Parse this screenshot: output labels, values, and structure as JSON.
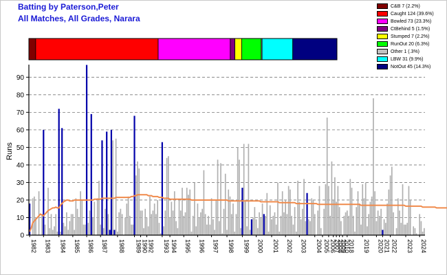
{
  "header": {
    "title": "Batting by Paterson,Peter",
    "subtitle": "All Matches, All Grades, Narara"
  },
  "legend": [
    {
      "label": "C&B 7 (2.2%)",
      "color": "#800000"
    },
    {
      "label": "Caught 124 (39.6%)",
      "color": "#ff0000"
    },
    {
      "label": "Bowled 73 (23.3%)",
      "color": "#ff00ff"
    },
    {
      "label": "CtBehind 5 (1.5%)",
      "color": "#800080"
    },
    {
      "label": "Stumped 7 (2.2%)",
      "color": "#ffff00"
    },
    {
      "label": "RunOut 20 (6.3%)",
      "color": "#00ff00"
    },
    {
      "label": "Other 1 (.3%)",
      "color": "#c0c0c0"
    },
    {
      "label": "LBW 31 (9.9%)",
      "color": "#00ffff"
    },
    {
      "label": "NotOut 45 (14.3%)",
      "color": "#000080"
    }
  ],
  "chart_data": [
    {
      "type": "bar",
      "stacked_percent": true,
      "segments": [
        {
          "label": "C&B",
          "value": 2.2,
          "color": "#800000"
        },
        {
          "label": "Caught",
          "value": 39.6,
          "color": "#ff0000"
        },
        {
          "label": "Bowled",
          "value": 23.3,
          "color": "#ff00ff"
        },
        {
          "label": "CtBehind",
          "value": 1.5,
          "color": "#800080"
        },
        {
          "label": "Stumped",
          "value": 2.2,
          "color": "#ffff00"
        },
        {
          "label": "RunOut",
          "value": 6.3,
          "color": "#00ff00"
        },
        {
          "label": "Other",
          "value": 0.3,
          "color": "#c0c0c0"
        },
        {
          "label": "LBW",
          "value": 9.9,
          "color": "#00ffff"
        },
        {
          "label": "NotOut",
          "value": 14.3,
          "color": "#000080"
        }
      ]
    },
    {
      "type": "bar",
      "ylabel": "Runs",
      "ylim": [
        0,
        96
      ],
      "yticks": [
        0,
        10,
        20,
        30,
        40,
        50,
        60,
        70,
        80,
        90
      ],
      "grid": true,
      "xtick_labels": [
        {
          "label": "1982",
          "index": 0
        },
        {
          "label": "1983",
          "index": 9
        },
        {
          "label": "1984",
          "index": 19
        },
        {
          "label": "1985",
          "index": 28
        },
        {
          "label": "1986",
          "index": 37
        },
        {
          "label": "1987",
          "index": 46
        },
        {
          "label": "1988",
          "index": 57
        },
        {
          "label": "1989",
          "index": 68
        },
        {
          "label": "1990",
          "index": 72
        },
        {
          "label": "1992",
          "index": 76
        },
        {
          "label": "1993",
          "index": 86
        },
        {
          "label": "1994",
          "index": 91
        },
        {
          "label": "1995",
          "index": 100
        },
        {
          "label": "1996",
          "index": 109
        },
        {
          "label": "1997",
          "index": 118
        },
        {
          "label": "1998",
          "index": 128
        },
        {
          "label": "1999",
          "index": 138
        },
        {
          "label": "2000",
          "index": 147
        },
        {
          "label": "2001",
          "index": 157
        },
        {
          "label": "2002",
          "index": 166
        },
        {
          "label": "2003",
          "index": 175
        },
        {
          "label": "2004",
          "index": 185
        },
        {
          "label": "2005",
          "index": 190
        },
        {
          "label": "2006",
          "index": 194
        },
        {
          "label": "2007",
          "index": 197
        },
        {
          "label": "2008",
          "index": 199
        },
        {
          "label": "2009",
          "index": 201
        },
        {
          "label": "2010",
          "index": 203
        },
        {
          "label": "2018",
          "index": 206
        },
        {
          "label": "2019",
          "index": 216
        },
        {
          "label": "2020",
          "index": 225
        },
        {
          "label": "2021",
          "index": 229
        },
        {
          "label": "2022",
          "index": 234
        },
        {
          "label": "2023",
          "index": 244
        },
        {
          "label": "2024",
          "index": 253
        }
      ],
      "series": [
        {
          "values": [
            18,
            0,
            21,
            22,
            10,
            0,
            25,
            0,
            12,
            60,
            6,
            0,
            27,
            4,
            12,
            3,
            5,
            12,
            2,
            72,
            2,
            61,
            7,
            5,
            13,
            3,
            8,
            12,
            12,
            3,
            21,
            15,
            10,
            25,
            20,
            6,
            6,
            97,
            7,
            14,
            69,
            10,
            19,
            0,
            21,
            31,
            6,
            54,
            4,
            15,
            59,
            12,
            3,
            60,
            54,
            3,
            55,
            2,
            13,
            15,
            12,
            0,
            10,
            18,
            22,
            11,
            6,
            6,
            68,
            34,
            42,
            38,
            14,
            14,
            4,
            15,
            10,
            5,
            22,
            12,
            14,
            18,
            12,
            20,
            7,
            1,
            53,
            5,
            14,
            44,
            45,
            10,
            19,
            14,
            25,
            8,
            4,
            20,
            14,
            27,
            11,
            13,
            27,
            23,
            26,
            2,
            11,
            30,
            5,
            18,
            10,
            13,
            15,
            37,
            12,
            6,
            11,
            6,
            21,
            9,
            3,
            20,
            43,
            8,
            41,
            1,
            15,
            35,
            3,
            26,
            22,
            12,
            18,
            2,
            12,
            50,
            43,
            4,
            27,
            52,
            20,
            5,
            52,
            3,
            9,
            10,
            16,
            9,
            4,
            13,
            10,
            18,
            12,
            11,
            24,
            2,
            17,
            9,
            11,
            13,
            6,
            30,
            2,
            11,
            25,
            13,
            20,
            12,
            28,
            26,
            11,
            6,
            16,
            2,
            31,
            19,
            9,
            15,
            32,
            8,
            24,
            9,
            8,
            21,
            20,
            12,
            0,
            14,
            28,
            4,
            0,
            15,
            29,
            67,
            28,
            11,
            42,
            20,
            33,
            19,
            28,
            16,
            8,
            0,
            11,
            13,
            14,
            11,
            32,
            27,
            11,
            2,
            16,
            25,
            18,
            6,
            29,
            21,
            30,
            5,
            12,
            19,
            22,
            78,
            25,
            8,
            14,
            11,
            15,
            3,
            9,
            7,
            18,
            26,
            34,
            39,
            13,
            0,
            4,
            21,
            14,
            7,
            29,
            6,
            6,
            7,
            28,
            20,
            0,
            5,
            4,
            1,
            0,
            12,
            8,
            2,
            4
          ],
          "not_out": [
            0,
            9,
            19,
            21,
            37,
            40,
            47,
            50,
            52,
            53,
            55,
            68,
            86,
            138,
            144,
            152,
            180,
            229
          ],
          "color": "#b0b0b0",
          "not_out_color": "#0000aa"
        },
        {
          "type": "line",
          "values": [
            2,
            4,
            7,
            8,
            9,
            10,
            11,
            12,
            11.5,
            11,
            12,
            13,
            14,
            14.5,
            15,
            15.5,
            15.5,
            16,
            15.5,
            15.5,
            17,
            18,
            19,
            19.5,
            20,
            20,
            19.5,
            19.5,
            19.5,
            20,
            20,
            20,
            20,
            20,
            20,
            20,
            20,
            20,
            20,
            20,
            20,
            20,
            20.5,
            20.5,
            20.5,
            20.5,
            20.5,
            21,
            21,
            21,
            21,
            21,
            21,
            21,
            21,
            21,
            21.5,
            21.5,
            21.5,
            21.5,
            21.5,
            21.5,
            21.5,
            21.5,
            21.5,
            21.5,
            22,
            22,
            22.5,
            22.5,
            23,
            23,
            23,
            23,
            23,
            23,
            23,
            22.5,
            22.5,
            22.5,
            22,
            22,
            22,
            22,
            21.5,
            21.5,
            21.5,
            21,
            21,
            21,
            21,
            20.5,
            20.5,
            20.5,
            20.5,
            20.5,
            20.5,
            20.5,
            20.5,
            20.5,
            20.5,
            20.5,
            20.5,
            20.5,
            20.5,
            20,
            20,
            20,
            20,
            20,
            20,
            20,
            20,
            20,
            20,
            20,
            20,
            20,
            20,
            20,
            20,
            20,
            20,
            20,
            20,
            20,
            20,
            20,
            20,
            19.5,
            19.5,
            19.5,
            19.5,
            19.5,
            19.5,
            19.5,
            19.5,
            19.5,
            19.5,
            19.5,
            19.5,
            19.5,
            19.5,
            19.5,
            19.5,
            19.5,
            19.5,
            19.5,
            19.5,
            19.5,
            19,
            19,
            19,
            19,
            19,
            19,
            19,
            19,
            19,
            19,
            19,
            19,
            18.5,
            18.5,
            18.5,
            18.5,
            18.5,
            18.5,
            18.5,
            18.5,
            18.5,
            18.5,
            18.5,
            18,
            18,
            18,
            18,
            18,
            18,
            18,
            18,
            18,
            18,
            18,
            18,
            18,
            18,
            17.5,
            17.5,
            17.5,
            17.5,
            17.5,
            17.5,
            17.5,
            17.5,
            17.5,
            17.5,
            17.5,
            17.5,
            17.5,
            17.5,
            17.5,
            17.5,
            17.5,
            17.5,
            17.5,
            17.5,
            17.5,
            17.5,
            17.5,
            17.5,
            17.5,
            17.5,
            17.5,
            17.5,
            17,
            17,
            17,
            17,
            17,
            17,
            17,
            17,
            17,
            17,
            17,
            17,
            17,
            17,
            17,
            17,
            17,
            17,
            17,
            17,
            17,
            17,
            17,
            17,
            17,
            17,
            17,
            17,
            17,
            16.5,
            16.5,
            16.5,
            16.5,
            16.5,
            16.5,
            16.5,
            16.5,
            16.5,
            16.5,
            16.5,
            16,
            16,
            16,
            16,
            16,
            16,
            16,
            16,
            16,
            15.5,
            15.5,
            15.5,
            15.5,
            15.5,
            15.5,
            15.5,
            15.5
          ],
          "color": "#f08a4b"
        }
      ]
    }
  ]
}
